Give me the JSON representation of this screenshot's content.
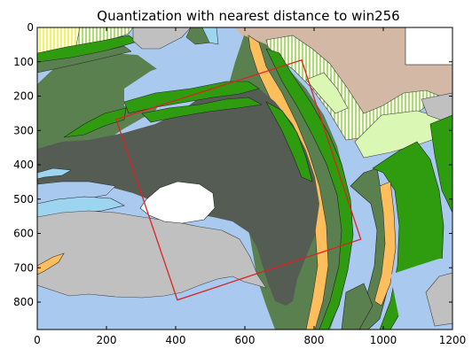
{
  "chart_data": {
    "type": "image",
    "title": "Quantization with nearest distance to win256",
    "xlim": [
      0,
      1200
    ],
    "ylim": [
      880,
      0
    ],
    "x_ticks": [
      0,
      200,
      400,
      600,
      800,
      1000,
      1200
    ],
    "y_ticks": [
      0,
      100,
      200,
      300,
      400,
      500,
      600,
      700,
      800
    ],
    "x_tick_labels": [
      "0",
      "200",
      "400",
      "600",
      "800",
      "1000",
      "1200"
    ],
    "y_tick_labels": [
      "0",
      "100",
      "200",
      "300",
      "400",
      "500",
      "600",
      "700",
      "800"
    ],
    "overlay": {
      "shape": "quadrilateral",
      "color": "#dd2222",
      "vertices": [
        [
          228,
          268
        ],
        [
          764,
          95
        ],
        [
          935,
          617
        ],
        [
          405,
          794
        ]
      ]
    },
    "palette": {
      "dark_gray_green": "#545c54",
      "medium_green": "#5a8050",
      "bright_green": "#2f9c10",
      "light_blue": "#a9c9ee",
      "pale_blue": "#9dd4f0",
      "silver": "#c0c0c0",
      "orange": "#ffbe5c",
      "tan": "#d3b8a6",
      "pale_lime": "#daf8b4",
      "white": "#ffffff",
      "yellow": "#ffff44",
      "frame": "#000000"
    }
  }
}
